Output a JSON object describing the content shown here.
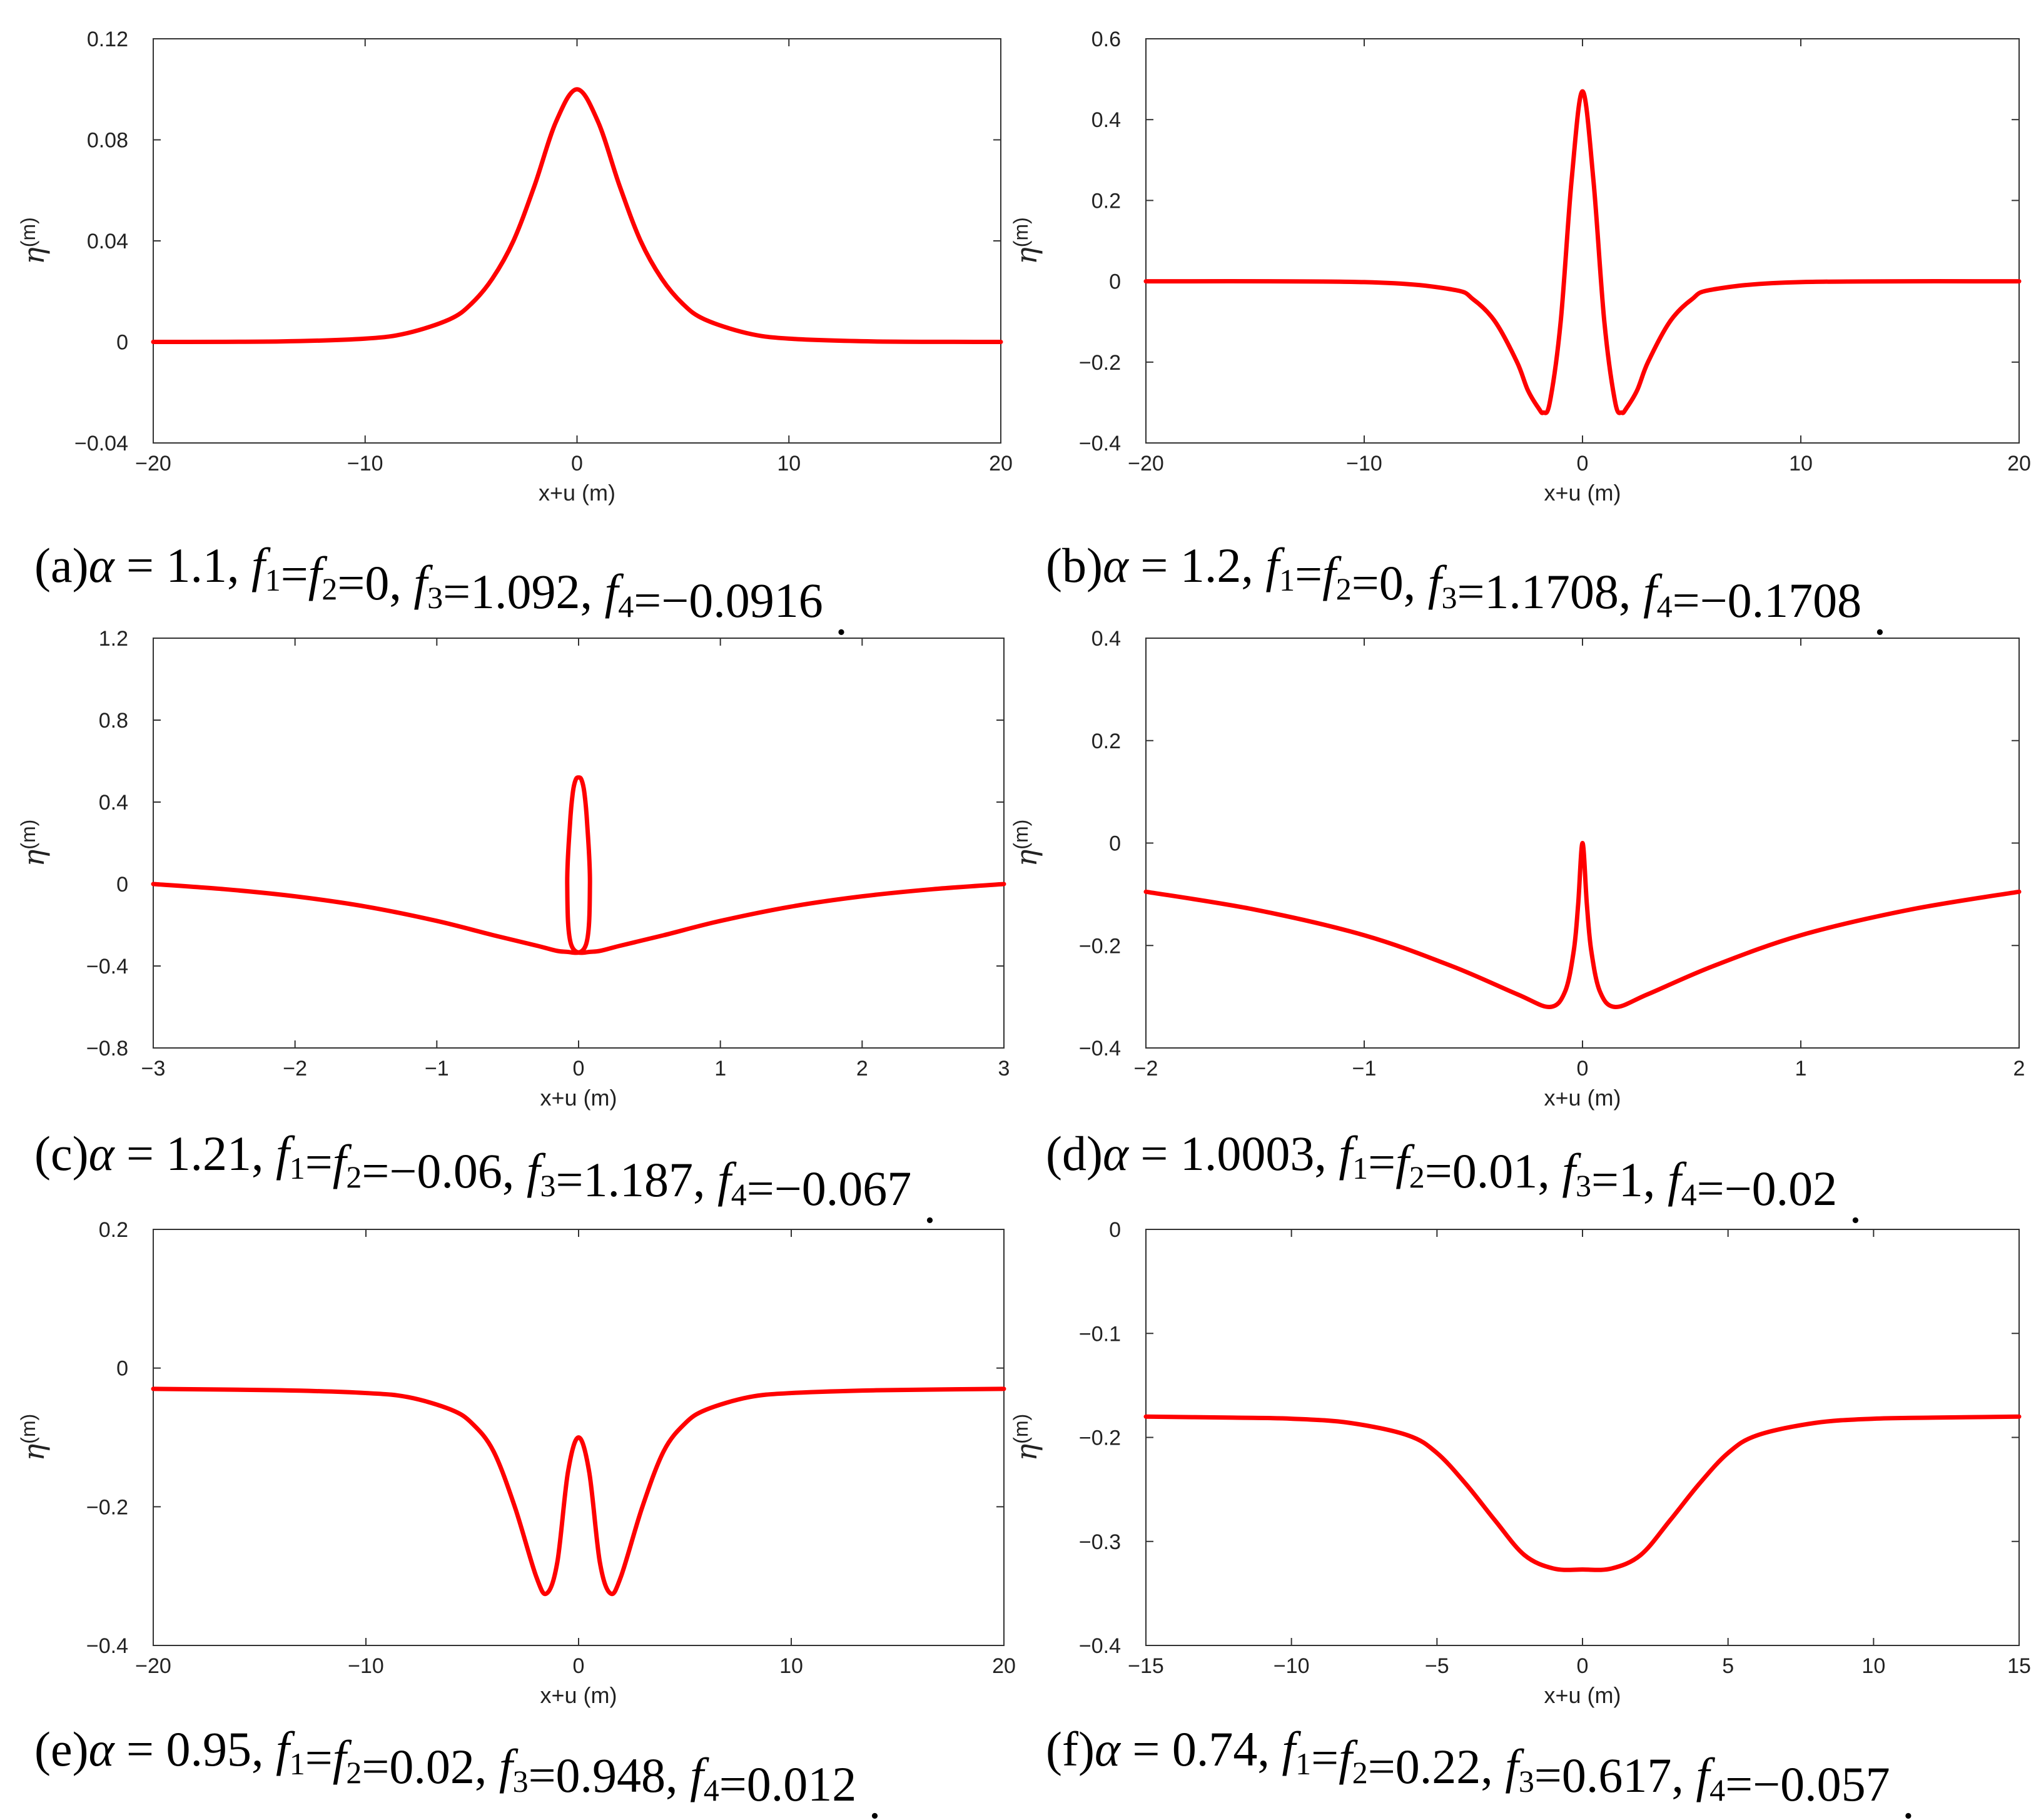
{
  "chart_data": [
    {
      "type": "line",
      "panel": "a",
      "xlabel": "x+u (m)",
      "ylabel": "η(m)",
      "xlim": [
        -20,
        20
      ],
      "ylim": [
        -0.04,
        0.12
      ],
      "xticks": [
        -20,
        -10,
        0,
        10,
        20
      ],
      "xtick_labels": [
        "−20",
        "−10",
        "0",
        "10",
        "20"
      ],
      "yticks": [
        -0.04,
        0,
        0.04,
        0.08,
        0.12
      ],
      "ytick_labels": [
        "−0.04",
        "0",
        "0.04",
        "0.08",
        "0.12"
      ],
      "caption": "(a)α = 1.1,  f1=f2=0, f3=1.092, f4=−0.0916",
      "caption_parts": {
        "label": "(a)",
        "alpha": "α = 1.1,",
        "f12": "f1=f2=0,",
        "f3": "f3=1.092,",
        "f4": "f4=−0.0916"
      },
      "series": [
        {
          "color": "#ff0000",
          "x": [
            -20,
            -14,
            -10,
            -8,
            -6,
            -5,
            -4,
            -3,
            -2,
            -1,
            0,
            1,
            2,
            3,
            4,
            5,
            6,
            8,
            10,
            14,
            20
          ],
          "y": [
            0.0,
            0.0002,
            0.0013,
            0.0035,
            0.009,
            0.015,
            0.025,
            0.04,
            0.062,
            0.087,
            0.1,
            0.087,
            0.062,
            0.04,
            0.025,
            0.015,
            0.009,
            0.0035,
            0.0013,
            0.0002,
            0.0
          ]
        }
      ]
    },
    {
      "type": "line",
      "panel": "b",
      "xlabel": "x+u (m)",
      "ylabel": "η(m)",
      "xlim": [
        -20,
        20
      ],
      "ylim": [
        -0.4,
        0.6
      ],
      "xticks": [
        -20,
        -10,
        0,
        10,
        20
      ],
      "xtick_labels": [
        "−20",
        "−10",
        "0",
        "10",
        "20"
      ],
      "yticks": [
        -0.4,
        -0.2,
        0,
        0.2,
        0.4,
        0.6
      ],
      "ytick_labels": [
        "−0.4",
        "−0.2",
        "0",
        "0.2",
        "0.4",
        "0.6"
      ],
      "caption": "(b)α = 1.2,  f1=f2=0, f3=1.1708, f4=−0.1708",
      "caption_parts": {
        "label": "(b)",
        "alpha": "α = 1.2,",
        "f12": "f1=f2=0,",
        "f3": "f3=1.1708,",
        "f4": "f4=−0.1708"
      },
      "series": [
        {
          "color": "#ff0000",
          "x": [
            -20,
            -10,
            -6,
            -5,
            -4,
            -3,
            -2.5,
            -2,
            -1.8,
            -1.5,
            -1,
            -0.5,
            0,
            0.5,
            1,
            1.5,
            1.8,
            2,
            2.5,
            3,
            4,
            5,
            6,
            10,
            20
          ],
          "y": [
            0.0,
            -0.002,
            -0.02,
            -0.045,
            -0.1,
            -0.2,
            -0.27,
            -0.315,
            -0.325,
            -0.3,
            -0.1,
            0.25,
            0.47,
            0.25,
            -0.1,
            -0.3,
            -0.325,
            -0.315,
            -0.27,
            -0.2,
            -0.1,
            -0.045,
            -0.02,
            -0.002,
            0.0
          ]
        }
      ]
    },
    {
      "type": "line",
      "panel": "c",
      "xlabel": "x+u (m)",
      "ylabel": "η(m)",
      "xlim": [
        -3,
        3
      ],
      "ylim": [
        -0.8,
        1.2
      ],
      "xticks": [
        -3,
        -2,
        -1,
        0,
        1,
        2,
        3
      ],
      "xtick_labels": [
        "−3",
        "−2",
        "−1",
        "0",
        "1",
        "2",
        "3"
      ],
      "yticks": [
        -0.8,
        -0.4,
        0,
        0.4,
        0.8,
        1.2
      ],
      "ytick_labels": [
        "−0.8",
        "−0.4",
        "0",
        "0.4",
        "0.8",
        "1.2"
      ],
      "caption": "(c)α = 1.21, f1=f2=−0.06, f3=1.187, f4=−0.067",
      "caption_parts": {
        "label": "(c)",
        "alpha": "α = 1.21,",
        "f12": "f1=f2=−0.06,",
        "f3": "f3=1.187,",
        "f4": "f4=−0.067"
      },
      "series": [
        {
          "color": "#ff0000",
          "x": [
            -3,
            -2.5,
            -2,
            -1.5,
            -1,
            -0.6,
            -0.3,
            -0.1,
            0.05,
            0.08,
            0.06,
            0.04,
            0.02,
            0.0,
            -0.02,
            -0.04,
            -0.06,
            -0.08,
            -0.05,
            0.1,
            0.3,
            0.6,
            1,
            1.5,
            2,
            2.5,
            3
          ],
          "y": [
            0.0,
            -0.025,
            -0.06,
            -0.11,
            -0.18,
            -0.25,
            -0.3,
            -0.33,
            -0.3,
            0.0,
            0.3,
            0.45,
            0.51,
            0.52,
            0.51,
            0.45,
            0.3,
            0.0,
            -0.3,
            -0.33,
            -0.3,
            -0.25,
            -0.18,
            -0.11,
            -0.06,
            -0.025,
            0.0
          ]
        }
      ]
    },
    {
      "type": "line",
      "panel": "d",
      "xlabel": "x+u (m)",
      "ylabel": "η(m)",
      "xlim": [
        -2,
        2
      ],
      "ylim": [
        -0.4,
        0.4
      ],
      "xticks": [
        -2,
        -1,
        0,
        1,
        2
      ],
      "xtick_labels": [
        "−2",
        "−1",
        "0",
        "1",
        "2"
      ],
      "yticks": [
        -0.4,
        -0.2,
        0,
        0.2,
        0.4
      ],
      "ytick_labels": [
        "−0.4",
        "−0.2",
        "0",
        "0.2",
        "0.4"
      ],
      "caption": "(d)α = 1.0003,  f1=f2=0.01, f3=1, f4=−0.02",
      "caption_parts": {
        "label": "(d)",
        "alpha": "α = 1.0003,",
        "f12": "f1=f2=0.01,",
        "f3": "f3=1,",
        "f4": "f4=−0.02"
      },
      "series": [
        {
          "color": "#ff0000",
          "x": [
            -2,
            -1.5,
            -1,
            -0.6,
            -0.3,
            -0.15,
            -0.08,
            -0.04,
            -0.02,
            0,
            0.02,
            0.04,
            0.08,
            0.15,
            0.3,
            0.6,
            1,
            1.5,
            2
          ],
          "y": [
            -0.095,
            -0.13,
            -0.18,
            -0.24,
            -0.295,
            -0.32,
            -0.29,
            -0.21,
            -0.12,
            0.0,
            -0.12,
            -0.21,
            -0.29,
            -0.32,
            -0.295,
            -0.24,
            -0.18,
            -0.13,
            -0.095
          ]
        }
      ]
    },
    {
      "type": "line",
      "panel": "e",
      "xlabel": "x+u (m)",
      "ylabel": "η(m)",
      "xlim": [
        -20,
        20
      ],
      "ylim": [
        -0.4,
        0.2
      ],
      "xticks": [
        -20,
        -10,
        0,
        10,
        20
      ],
      "xtick_labels": [
        "−20",
        "−10",
        "0",
        "10",
        "20"
      ],
      "yticks": [
        -0.4,
        -0.2,
        0,
        0.2
      ],
      "ytick_labels": [
        "−0.4",
        "−0.2",
        "0",
        "0.2"
      ],
      "caption": "(e)α = 0.95,  f1=f2=0.02, f3=0.948, f4=0.012",
      "caption_parts": {
        "label": "(e)",
        "alpha": "α = 0.95,",
        "f12": "f1=f2=0.02,",
        "f3": "f3=0.948,",
        "f4": "f4=0.012"
      },
      "series": [
        {
          "color": "#ff0000",
          "x": [
            -20,
            -14,
            -10,
            -8,
            -6,
            -5,
            -4,
            -3,
            -2,
            -1.5,
            -1,
            -0.5,
            0,
            0.5,
            1,
            1.5,
            2,
            3,
            4,
            5,
            6,
            8,
            10,
            14,
            20
          ],
          "y": [
            -0.03,
            -0.032,
            -0.036,
            -0.042,
            -0.06,
            -0.08,
            -0.12,
            -0.2,
            -0.3,
            -0.325,
            -0.28,
            -0.15,
            -0.1,
            -0.15,
            -0.28,
            -0.325,
            -0.3,
            -0.2,
            -0.12,
            -0.08,
            -0.06,
            -0.042,
            -0.036,
            -0.032,
            -0.03
          ]
        }
      ]
    },
    {
      "type": "line",
      "panel": "f",
      "xlabel": "x+u (m)",
      "ylabel": "η(m)",
      "xlim": [
        -15,
        15
      ],
      "ylim": [
        -0.4,
        0
      ],
      "xticks": [
        -15,
        -10,
        -5,
        0,
        5,
        10,
        15
      ],
      "xtick_labels": [
        "−15",
        "−10",
        "−5",
        "0",
        "5",
        "10",
        "15"
      ],
      "yticks": [
        -0.4,
        -0.3,
        -0.2,
        -0.1,
        0
      ],
      "ytick_labels": [
        "−0.4",
        "−0.3",
        "−0.2",
        "−0.1",
        "0"
      ],
      "caption": "(f)α = 0.74, f1=f2=0.22, f3=0.617, f4=−0.057",
      "caption_parts": {
        "label": "(f)",
        "alpha": "α = 0.74,",
        "f12": "f1=f2=0.22,",
        "f3": "f3=0.617,",
        "f4": "f4=−0.057"
      },
      "series": [
        {
          "color": "#ff0000",
          "x": [
            -15,
            -12,
            -10,
            -8,
            -6,
            -5,
            -4,
            -3,
            -2,
            -1,
            0,
            1,
            2,
            3,
            4,
            5,
            6,
            8,
            10,
            12,
            15
          ],
          "y": [
            -0.18,
            -0.181,
            -0.182,
            -0.186,
            -0.198,
            -0.215,
            -0.245,
            -0.28,
            -0.313,
            -0.326,
            -0.327,
            -0.326,
            -0.313,
            -0.28,
            -0.245,
            -0.215,
            -0.198,
            -0.186,
            -0.182,
            -0.181,
            -0.18
          ]
        }
      ]
    }
  ]
}
